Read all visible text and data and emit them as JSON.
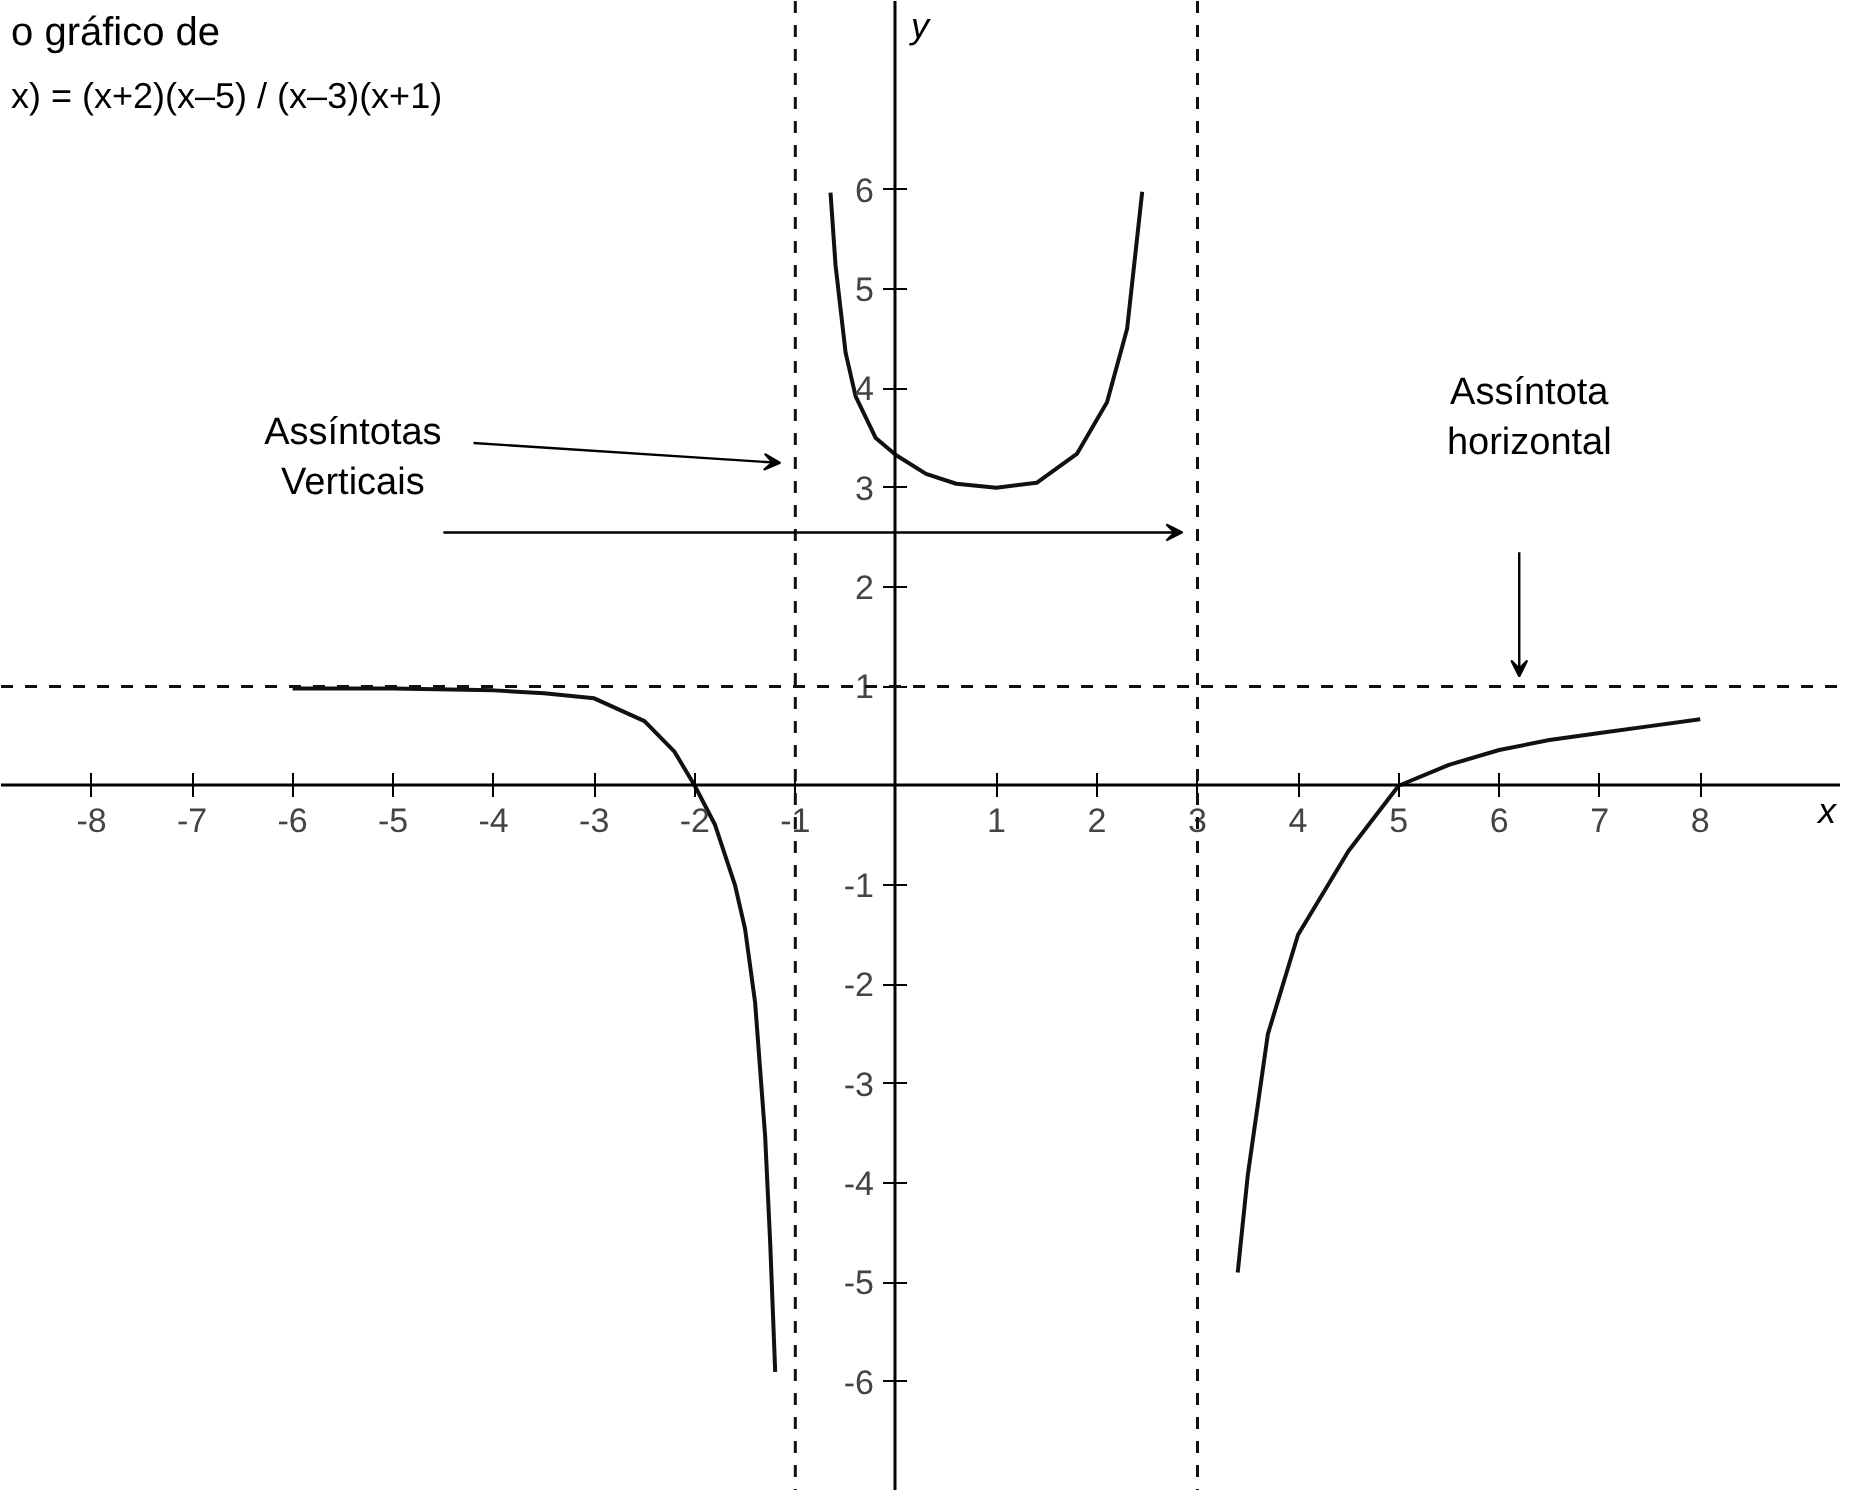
{
  "chart_data": {
    "type": "line",
    "title": "o gráfico de",
    "subtitle": "x) = (x+2)(x–5) / (x–3)(x+1)",
    "xlabel": "x",
    "ylabel": "y",
    "xlim": [
      -8.9,
      9.4
    ],
    "ylim": [
      -7.1,
      7.9
    ],
    "xticks": [
      -8,
      -7,
      -6,
      -5,
      -4,
      -3,
      -2,
      -1,
      1,
      2,
      3,
      4,
      5,
      6,
      7,
      8
    ],
    "yticks": [
      -6,
      -5,
      -4,
      -3,
      -2,
      -1,
      1,
      2,
      3,
      4,
      5,
      6
    ],
    "series": [
      {
        "color": "#111111",
        "x": [
          -6,
          -5,
          -4,
          -3.5,
          -3,
          -2.5,
          -2.2,
          -2,
          -1.8,
          -1.6,
          -1.5,
          -1.4,
          -1.3,
          -1.25,
          -1.2
        ],
        "values": [
          0.98,
          0.98,
          0.96,
          0.93,
          0.88,
          0.65,
          0.34,
          0,
          -0.39,
          -1,
          -1.44,
          -2.18,
          -3.53,
          -4.6,
          -5.9
        ]
      },
      {
        "color": "#111111",
        "x": [
          -0.65,
          -0.6,
          -0.5,
          -0.4,
          -0.2,
          0,
          0.3,
          0.6,
          1,
          1.4,
          1.8,
          2.1,
          2.3,
          2.45
        ],
        "values": [
          5.97,
          5.24,
          4.36,
          3.92,
          3.5,
          3.33,
          3.14,
          3.04,
          3,
          3.05,
          3.34,
          3.86,
          4.6,
          5.98
        ]
      },
      {
        "color": "#111111",
        "x": [
          3.4,
          3.5,
          3.7,
          4,
          4.5,
          5,
          5.5,
          6,
          6.5,
          7,
          7.5,
          8
        ],
        "values": [
          -4.9,
          -3.92,
          -2.5,
          -1.5,
          -0.66,
          0,
          0.21,
          0.36,
          0.46,
          0.53,
          0.6,
          0.67
        ]
      }
    ],
    "ref_lines": [
      {
        "axis": "x",
        "value": -1,
        "line_style": "dashed",
        "color": "#111111"
      },
      {
        "axis": "x",
        "value": 3,
        "line_style": "dashed",
        "color": "#111111"
      },
      {
        "axis": "y",
        "value": 1,
        "line_style": "dashed",
        "color": "#111111"
      }
    ],
    "annotations": [
      "Assíntotas Verticais",
      "Assíntota horizontal"
    ],
    "grid": false,
    "marker": "none",
    "line_style": "solid"
  }
}
